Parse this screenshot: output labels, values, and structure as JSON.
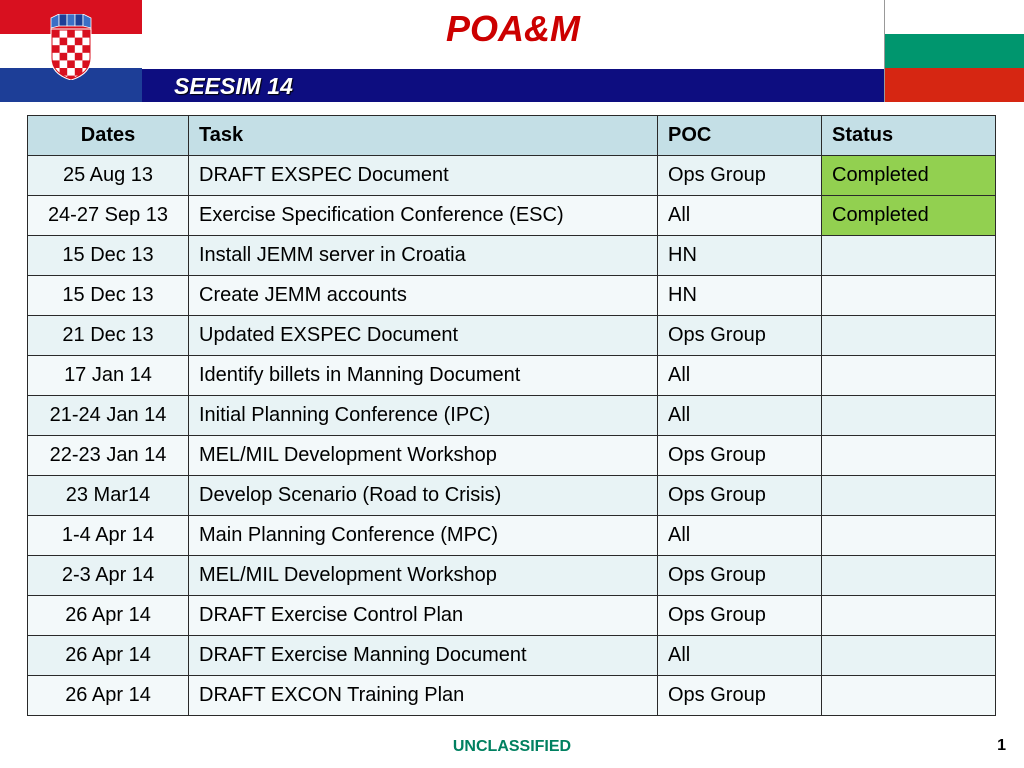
{
  "header": {
    "title": "POA&M",
    "subtitle": "SEESIM 14"
  },
  "flags": {
    "left": {
      "name": "croatia-flag",
      "colors": [
        "#d8101f",
        "#ffffff",
        "#1d3e97"
      ]
    },
    "right": {
      "name": "bulgaria-flag",
      "colors": [
        "#ffffff",
        "#00966e",
        "#d62612"
      ]
    }
  },
  "table": {
    "columns": [
      "Dates",
      "Task",
      "POC",
      "Status"
    ],
    "rows": [
      {
        "date": "25 Aug 13",
        "task": "DRAFT EXSPEC Document",
        "poc": "Ops Group",
        "status": "Completed"
      },
      {
        "date": "24-27 Sep 13",
        "task": "Exercise Specification Conference (ESC)",
        "poc": "All",
        "status": "Completed"
      },
      {
        "date": "15 Dec 13",
        "task": "Install JEMM server in Croatia",
        "poc": "HN",
        "status": ""
      },
      {
        "date": "15 Dec 13",
        "task": "Create JEMM accounts",
        "poc": "HN",
        "status": ""
      },
      {
        "date": "21 Dec 13",
        "task": "Updated EXSPEC Document",
        "poc": "Ops Group",
        "status": ""
      },
      {
        "date": "17 Jan 14",
        "task": "Identify billets in Manning Document",
        "poc": "All",
        "status": ""
      },
      {
        "date": "21-24 Jan 14",
        "task": "Initial Planning Conference (IPC)",
        "poc": "All",
        "status": ""
      },
      {
        "date": "22-23 Jan 14",
        "task": "MEL/MIL Development Workshop",
        "poc": "Ops Group",
        "status": ""
      },
      {
        "date": "23 Mar14",
        "task": "Develop Scenario (Road to Crisis)",
        "poc": "Ops Group",
        "status": ""
      },
      {
        "date": "1-4 Apr 14",
        "task": "Main Planning Conference (MPC)",
        "poc": "All",
        "status": ""
      },
      {
        "date": "2-3 Apr 14",
        "task": "MEL/MIL Development Workshop",
        "poc": "Ops Group",
        "status": ""
      },
      {
        "date": "26 Apr 14",
        "task": "DRAFT Exercise Control Plan",
        "poc": "Ops Group",
        "status": ""
      },
      {
        "date": "26 Apr 14",
        "task": "DRAFT Exercise Manning Document",
        "poc": "All",
        "status": ""
      },
      {
        "date": "26 Apr 14",
        "task": "DRAFT EXCON Training Plan",
        "poc": "Ops Group",
        "status": ""
      }
    ],
    "status_colors": {
      "Completed": "#92d050"
    }
  },
  "footer": {
    "classification": "UNCLASSIFIED",
    "page_number": "1"
  }
}
